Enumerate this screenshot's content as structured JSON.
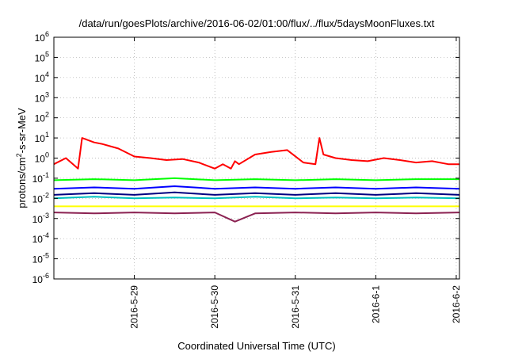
{
  "chart_data": {
    "type": "line",
    "title": "/data/run/goesPlots/archive/2016-06-02/01:00/flux/../flux/5daysMoonFluxes.txt",
    "xlabel": "Coordinated Universal Time (UTC)",
    "ylabel_parts": {
      "main": "protons/cm",
      "sup": "2",
      "rest": "-s-sr-MeV"
    },
    "yscale": "log",
    "ylim_exp": [
      -6,
      6
    ],
    "grid": true,
    "x_range_days": [
      "2016-05-28 00:00",
      "2016-06-02 01:00"
    ],
    "x_ticks": [
      {
        "label": "2016-5-29",
        "day": 1
      },
      {
        "label": "2016-5-30",
        "day": 2
      },
      {
        "label": "2016-5-31",
        "day": 3
      },
      {
        "label": "2016-6-1",
        "day": 4
      },
      {
        "label": "2016-6-2",
        "day": 5
      }
    ],
    "y_ticks": [
      {
        "base": "10",
        "exp": "6"
      },
      {
        "base": "10",
        "exp": "5"
      },
      {
        "base": "10",
        "exp": "4"
      },
      {
        "base": "10",
        "exp": "3"
      },
      {
        "base": "10",
        "exp": "2"
      },
      {
        "base": "10",
        "exp": "1"
      },
      {
        "base": "10",
        "exp": "0"
      },
      {
        "base": "10",
        "exp": "-1"
      },
      {
        "base": "10",
        "exp": "-2"
      },
      {
        "base": "10",
        "exp": "-3"
      },
      {
        "base": "10",
        "exp": "-4"
      },
      {
        "base": "10",
        "exp": "-5"
      },
      {
        "base": "10",
        "exp": "-6"
      }
    ],
    "series": [
      {
        "color": "#ff0000",
        "x_days": [
          0,
          0.15,
          0.3,
          0.35,
          0.5,
          0.6,
          0.8,
          1.0,
          1.2,
          1.4,
          1.6,
          1.8,
          2.0,
          2.1,
          2.2,
          2.25,
          2.3,
          2.5,
          2.7,
          2.9,
          3.1,
          3.25,
          3.3,
          3.35,
          3.5,
          3.7,
          3.9,
          4.1,
          4.3,
          4.5,
          4.7,
          4.9,
          5.04
        ],
        "y": [
          0.5,
          1.0,
          0.3,
          10,
          6,
          5,
          3,
          1.2,
          1.0,
          0.8,
          0.9,
          0.6,
          0.3,
          0.5,
          0.3,
          0.7,
          0.5,
          1.5,
          2.0,
          2.5,
          0.6,
          0.5,
          10,
          1.5,
          1.0,
          0.8,
          0.7,
          1.0,
          0.8,
          0.6,
          0.7,
          0.5,
          0.5
        ]
      },
      {
        "color": "#00ff00",
        "x_days": [
          0,
          0.5,
          1.0,
          1.5,
          2.0,
          2.5,
          3.0,
          3.5,
          4.0,
          4.5,
          5.04
        ],
        "y": [
          0.08,
          0.09,
          0.08,
          0.1,
          0.08,
          0.09,
          0.08,
          0.09,
          0.08,
          0.09,
          0.09
        ]
      },
      {
        "color": "#00c0c0",
        "x_days": [
          0,
          0.5,
          1.0,
          1.5,
          2.0,
          2.5,
          3.0,
          3.5,
          4.0,
          4.5,
          5.04
        ],
        "y": [
          0.01,
          0.012,
          0.01,
          0.011,
          0.01,
          0.012,
          0.01,
          0.011,
          0.01,
          0.011,
          0.01
        ]
      },
      {
        "color": "#0000ff",
        "x_days": [
          0,
          0.5,
          1.0,
          1.5,
          2.0,
          2.5,
          3.0,
          3.5,
          4.0,
          4.5,
          5.04
        ],
        "y": [
          0.03,
          0.035,
          0.03,
          0.04,
          0.03,
          0.035,
          0.03,
          0.035,
          0.03,
          0.035,
          0.03
        ]
      },
      {
        "color": "#000080",
        "x_days": [
          0,
          0.5,
          1.0,
          1.5,
          2.0,
          2.5,
          3.0,
          3.5,
          4.0,
          4.5,
          5.04
        ],
        "y": [
          0.015,
          0.018,
          0.015,
          0.02,
          0.015,
          0.018,
          0.015,
          0.018,
          0.015,
          0.018,
          0.015
        ]
      },
      {
        "color": "#ffff00",
        "x_days": [
          0,
          0.5,
          1.0,
          1.5,
          2.0,
          2.5,
          3.0,
          3.5,
          4.0,
          4.5,
          5.04
        ],
        "y": [
          0.004,
          0.004,
          0.004,
          0.004,
          0.004,
          0.004,
          0.004,
          0.004,
          0.004,
          0.004,
          0.004
        ]
      },
      {
        "color": "#8b2252",
        "x_days": [
          0,
          0.5,
          1.0,
          1.5,
          2.0,
          2.25,
          2.5,
          3.0,
          3.5,
          4.0,
          4.5,
          5.04
        ],
        "y": [
          0.002,
          0.0018,
          0.002,
          0.0018,
          0.002,
          0.0007,
          0.0018,
          0.002,
          0.0018,
          0.002,
          0.0018,
          0.002
        ]
      }
    ]
  }
}
